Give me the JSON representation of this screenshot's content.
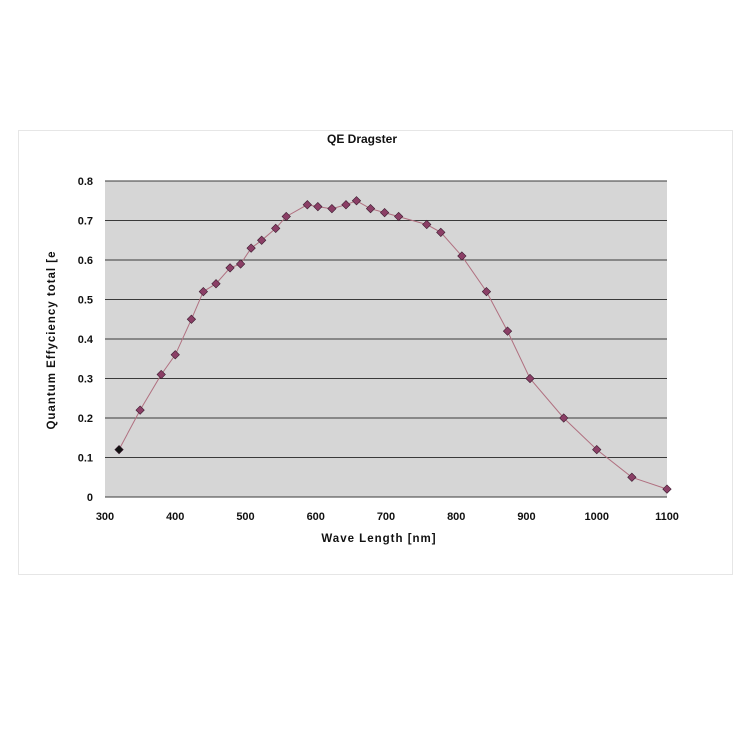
{
  "chart_data": {
    "type": "line",
    "title": "QE Dragster",
    "xlabel": "Wave Length [nm]",
    "ylabel": "Quantum Effyciency total [e",
    "xlim": [
      300,
      1100
    ],
    "ylim": [
      0,
      0.8
    ],
    "x_ticks": [
      300,
      400,
      500,
      600,
      700,
      800,
      900,
      1000,
      1100
    ],
    "y_ticks": [
      0,
      0.1,
      0.2,
      0.3,
      0.4,
      0.5,
      0.6,
      0.7,
      0.8
    ],
    "y_tick_labels": [
      "0",
      "0.1",
      "0.2",
      "0.3",
      "0.4",
      "0.5",
      "0.6",
      "0.7",
      "0.8"
    ],
    "grid": "horizontal",
    "legend": "none",
    "series": [
      {
        "marker": "diamond",
        "x": [
          320,
          350,
          380,
          400,
          423,
          440,
          458,
          478,
          493,
          508,
          523,
          543,
          558,
          588,
          603,
          623,
          643,
          658,
          678,
          698,
          718,
          758,
          778,
          808,
          843,
          873,
          905,
          953,
          1000,
          1050,
          1100
        ],
        "y": [
          0.12,
          0.22,
          0.31,
          0.36,
          0.45,
          0.52,
          0.54,
          0.58,
          0.59,
          0.63,
          0.65,
          0.68,
          0.71,
          0.74,
          0.735,
          0.73,
          0.74,
          0.75,
          0.73,
          0.72,
          0.71,
          0.69,
          0.67,
          0.61,
          0.52,
          0.42,
          0.3,
          0.2,
          0.12,
          0.05,
          0.02
        ]
      }
    ]
  },
  "colors": {
    "plot_background": "#d6d6d6",
    "gridline": "#3a3a3a",
    "line": "#b07080",
    "marker_fill": "#8b3f66",
    "marker_stroke": "#3a1a2e",
    "first_marker_fill": "#111111"
  }
}
